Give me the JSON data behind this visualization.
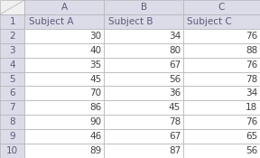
{
  "col_headers": [
    "",
    "A",
    "B",
    "C"
  ],
  "row_labels": [
    "1",
    "2",
    "3",
    "4",
    "5",
    "6",
    "7",
    "8",
    "9",
    "10"
  ],
  "subject_headers": [
    "Subject A",
    "Subject B",
    "Subject C"
  ],
  "data": [
    [
      30,
      34,
      76
    ],
    [
      40,
      80,
      88
    ],
    [
      35,
      67,
      76
    ],
    [
      45,
      56,
      78
    ],
    [
      70,
      36,
      34
    ],
    [
      86,
      45,
      18
    ],
    [
      90,
      78,
      76
    ],
    [
      46,
      67,
      65
    ],
    [
      89,
      87,
      56
    ]
  ],
  "header_bg": "#dcdce8",
  "cell_bg": "#ffffff",
  "grid_color": "#b0b0b8",
  "header_text_color": "#5a5a7a",
  "data_text_color": "#404040",
  "corner_bg": "#f0f0f0",
  "font_size": 7.5,
  "fig_width": 2.88,
  "fig_height": 1.75,
  "dpi": 100
}
